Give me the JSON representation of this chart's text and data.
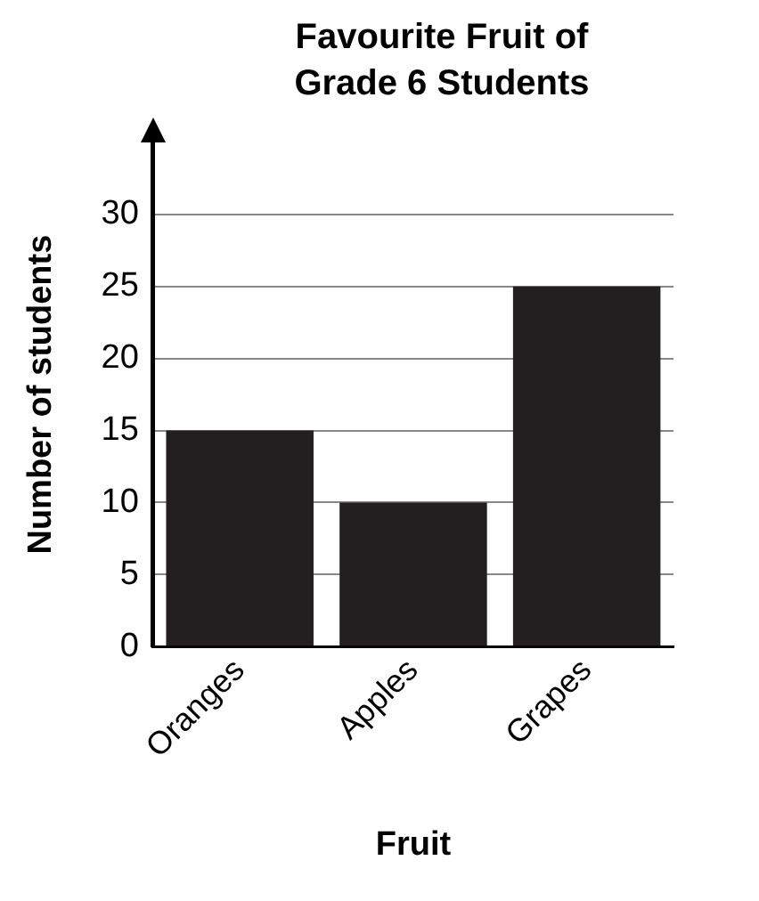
{
  "chart_data": {
    "type": "bar",
    "title": "Favourite Fruit of Grade 6 Students",
    "xlabel": "Fruit",
    "ylabel": "Number of students",
    "categories": [
      "Oranges",
      "Apples",
      "Grapes"
    ],
    "values": [
      15,
      10,
      25
    ],
    "color": "#231f20",
    "ylim": [
      0,
      35
    ],
    "yticks": [
      0,
      5,
      10,
      15,
      20,
      25,
      30
    ],
    "grid": "y"
  }
}
